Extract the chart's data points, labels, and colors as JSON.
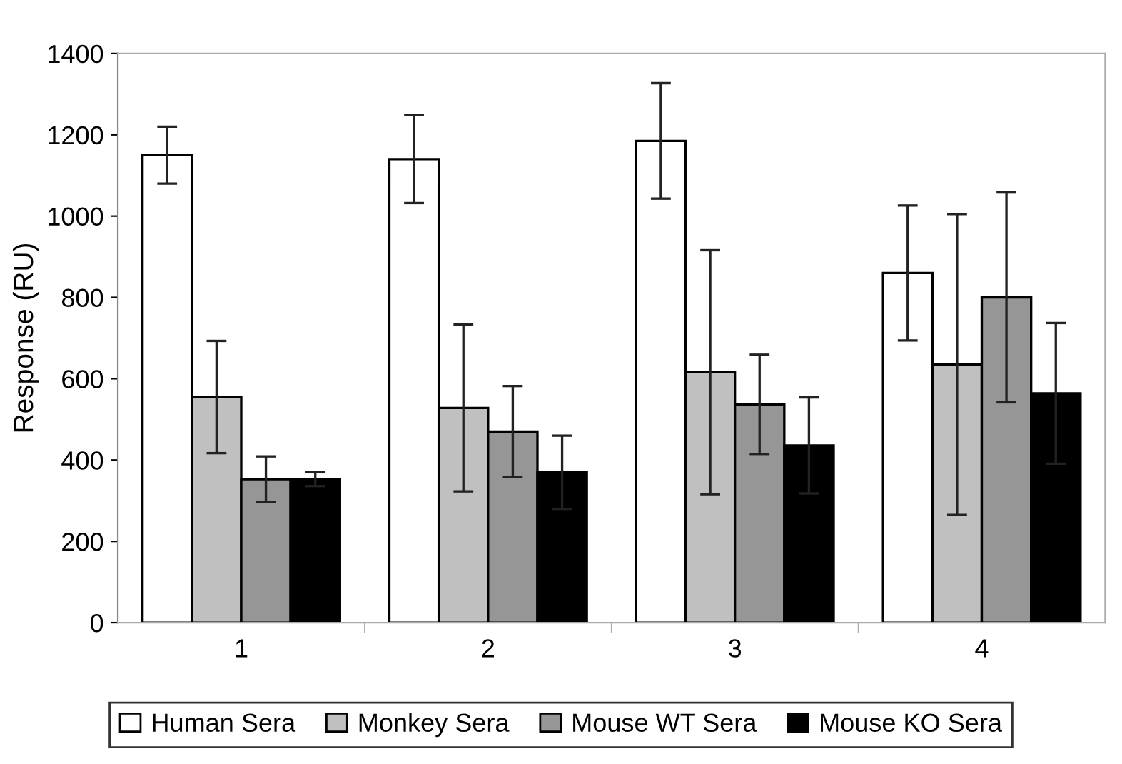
{
  "chart_data": {
    "type": "bar",
    "ylabel": "Response (RU)",
    "categories": [
      "1",
      "2",
      "3",
      "4"
    ],
    "ylim": [
      0,
      1400
    ],
    "yticks": [
      0,
      200,
      400,
      600,
      800,
      1000,
      1200,
      1400
    ],
    "grid": false,
    "legend": "bottom",
    "series": [
      {
        "name": "Human Sera",
        "color": "#ffffff",
        "values": [
          1150,
          1140,
          1185,
          860
        ],
        "errors": [
          70,
          108,
          142,
          166
        ]
      },
      {
        "name": "Monkey Sera",
        "color": "#c0c0c0",
        "values": [
          555,
          528,
          616,
          635
        ],
        "errors": [
          138,
          205,
          300,
          370
        ]
      },
      {
        "name": "Mouse WT Sera",
        "color": "#969696",
        "values": [
          353,
          470,
          537,
          800
        ],
        "errors": [
          56,
          112,
          122,
          258
        ]
      },
      {
        "name": "Mouse KO Sera",
        "color": "#000000",
        "values": [
          353,
          370,
          436,
          564
        ],
        "errors": [
          17,
          90,
          118,
          173
        ]
      }
    ]
  }
}
